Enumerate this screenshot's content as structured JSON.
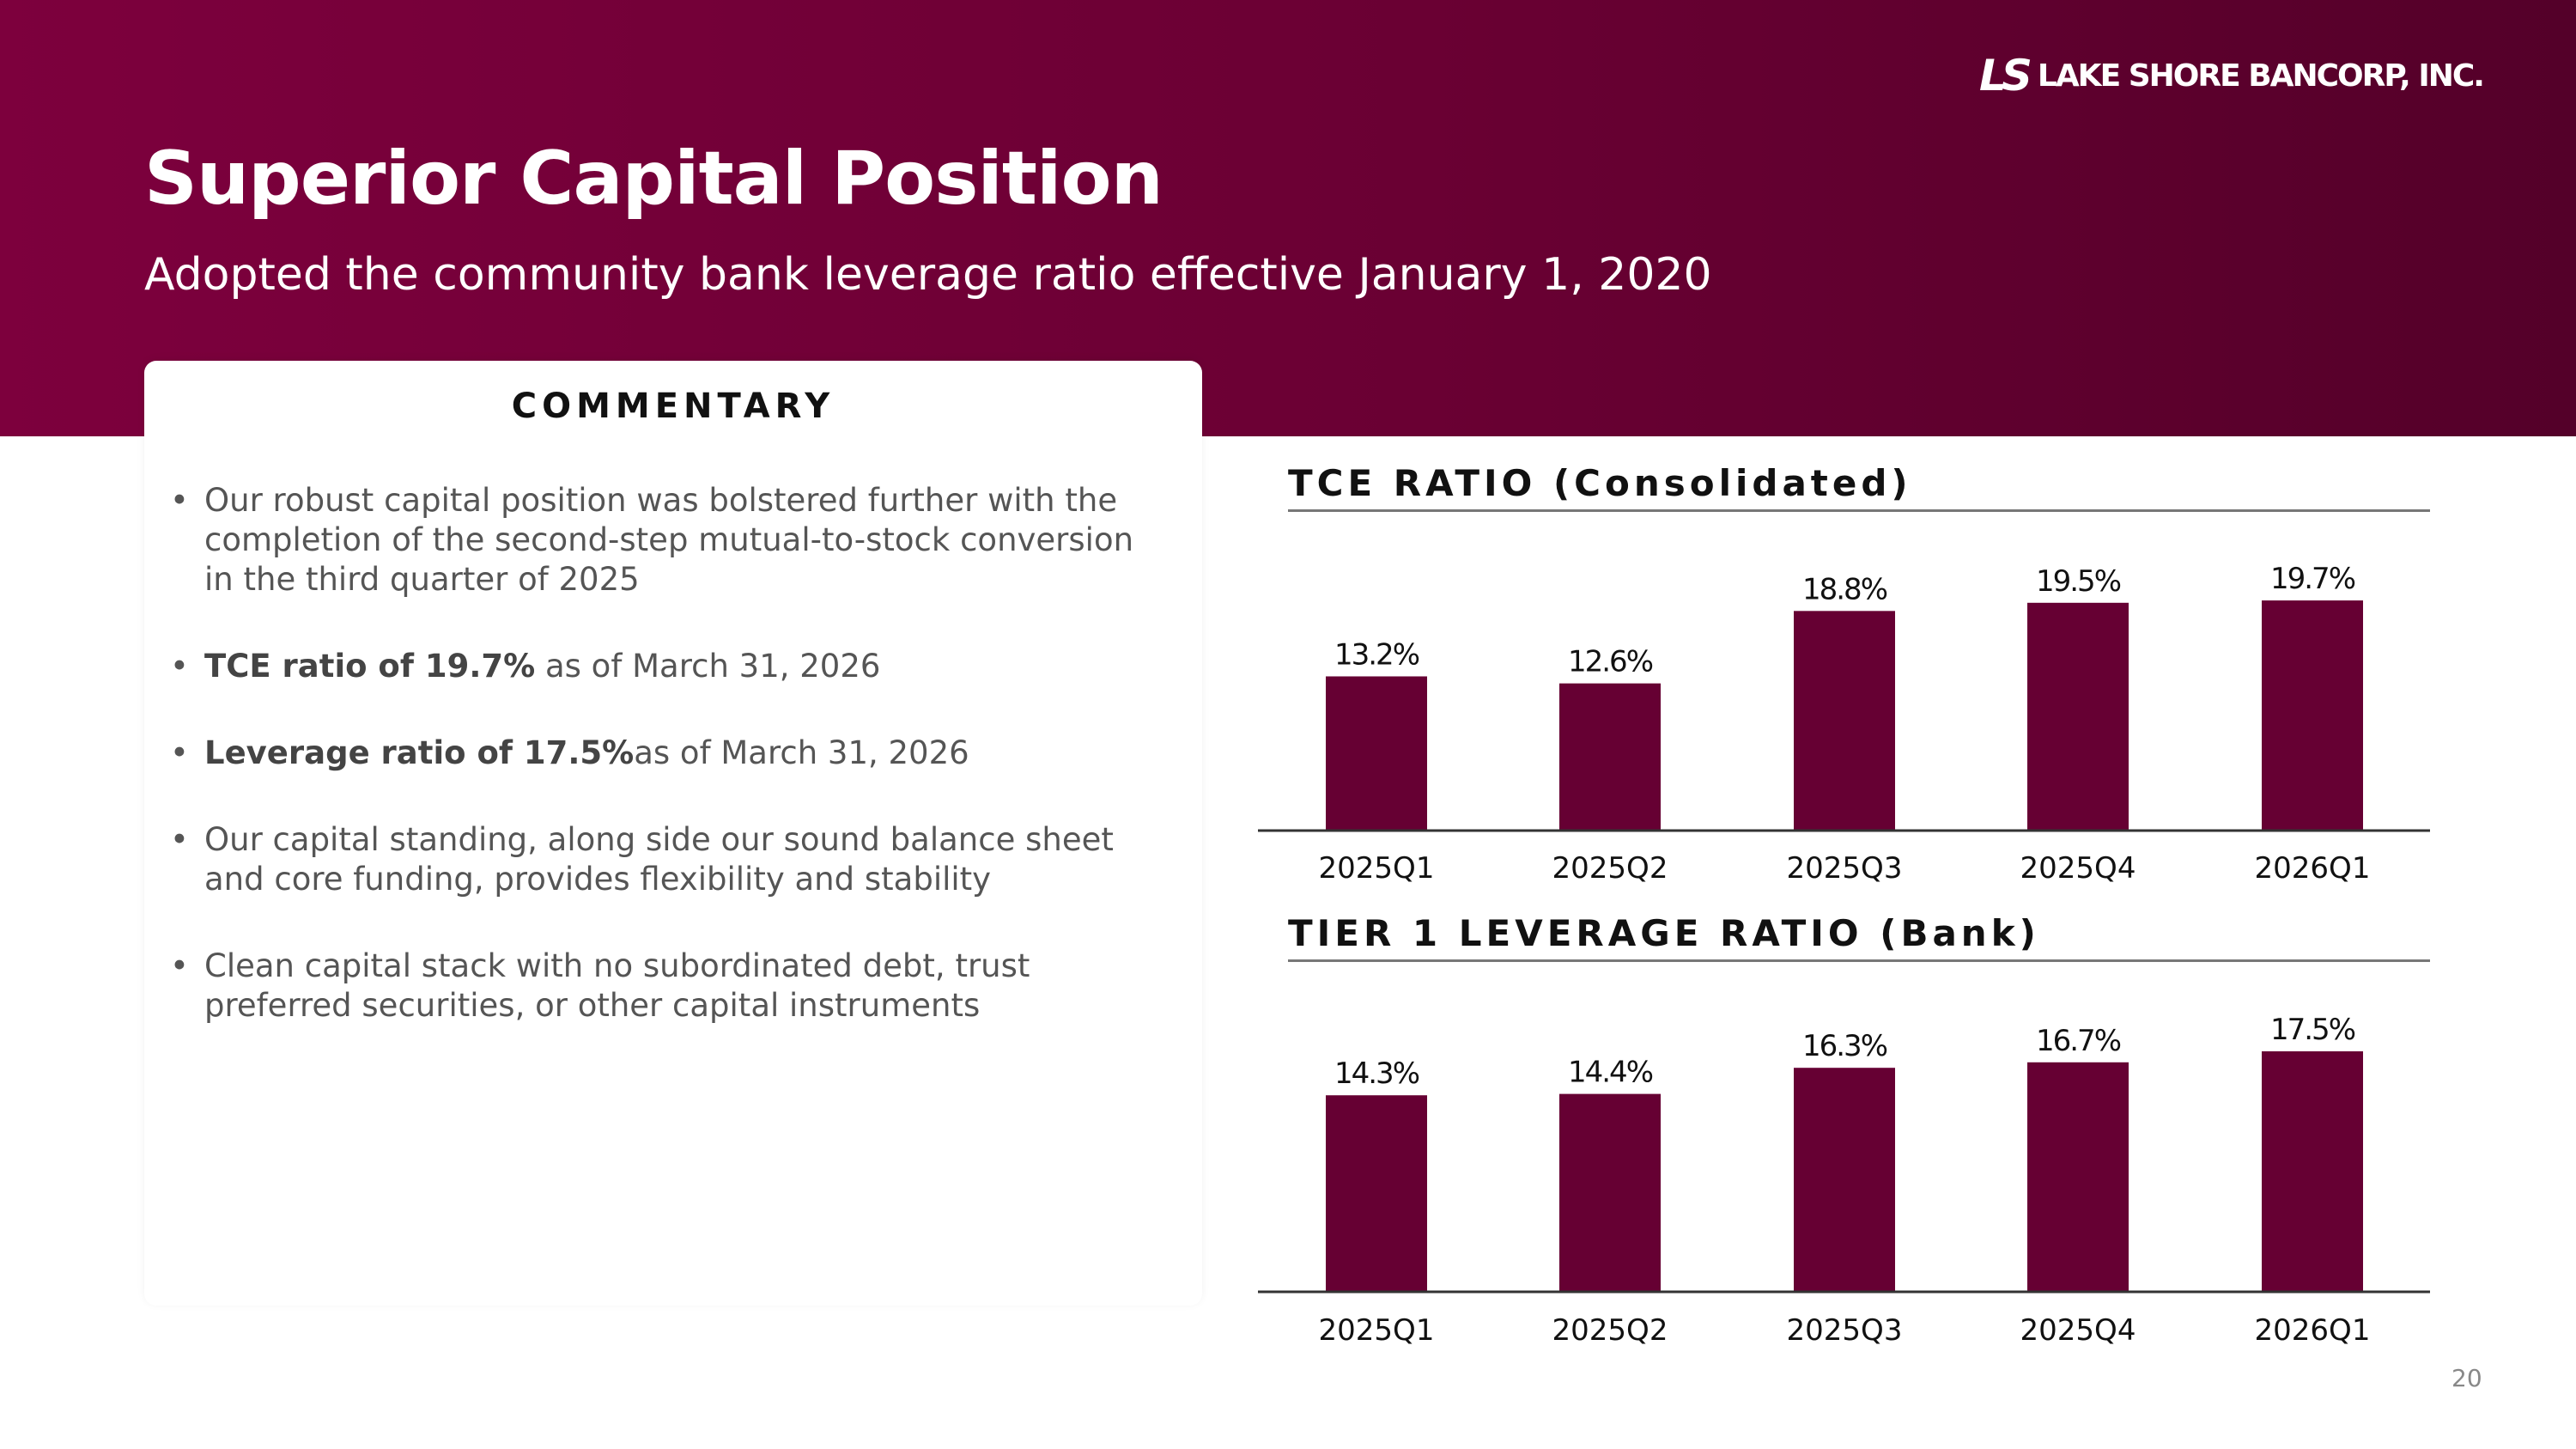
{
  "header": {
    "logo_mark": "LS",
    "logo_text": "LAKE SHORE BANCORP, INC.",
    "title": "Superior Capital Position",
    "subtitle": "Adopted the community bank leverage ratio effective January 1, 2020"
  },
  "commentary": {
    "heading": "COMMENTARY",
    "bullets": [
      {
        "bold": "",
        "text": "Our robust capital position was bolstered further with the completion of the second-step mutual-to-stock conversion in the third quarter of 2025"
      },
      {
        "bold": "TCE ratio of 19.7%",
        "text": " as of March 31, 2026"
      },
      {
        "bold": "Leverage ratio of 17.5%",
        "text": "as of March 31, 2026"
      },
      {
        "bold": "",
        "text": "Our capital standing, along side our sound balance sheet and core funding, provides flexibility and stability"
      },
      {
        "bold": "",
        "text": "Clean capital stack with no subordinated debt, trust preferred securities, or other capital instruments"
      }
    ]
  },
  "colors": {
    "header": "#7d003d",
    "bar": "#660033"
  },
  "chart_data": [
    {
      "type": "bar",
      "title": "TCE RATIO (Consolidated)",
      "categories": [
        "2025Q1",
        "2025Q2",
        "2025Q3",
        "2025Q4",
        "2026Q1"
      ],
      "values": [
        13.2,
        12.6,
        18.8,
        19.5,
        19.7
      ],
      "labels": [
        "13.2%",
        "12.6%",
        "18.8%",
        "19.5%",
        "19.7%"
      ],
      "ylim": [
        0,
        20
      ],
      "grid": false,
      "legend": "none"
    },
    {
      "type": "bar",
      "title": "TIER 1 LEVERAGE RATIO (Bank)",
      "categories": [
        "2025Q1",
        "2025Q2",
        "2025Q3",
        "2025Q4",
        "2026Q1"
      ],
      "values": [
        14.3,
        14.4,
        16.3,
        16.7,
        17.5
      ],
      "labels": [
        "14.3%",
        "14.4%",
        "16.3%",
        "16.7%",
        "17.5%"
      ],
      "ylim": [
        0,
        19
      ],
      "grid": false,
      "legend": "none"
    }
  ],
  "footer": {
    "page_number": "20"
  }
}
